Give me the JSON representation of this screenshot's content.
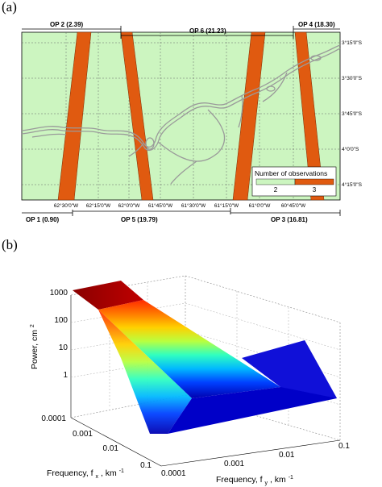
{
  "figure": {
    "panel_a": {
      "label": "(a)",
      "top_ops": [
        {
          "label": "OP 2 (2.39)"
        },
        {
          "label": "OP 6 (21.23)"
        },
        {
          "label": "OP 4 (18.30)"
        }
      ],
      "bottom_ops": [
        {
          "label": "OP 1 (0.90)"
        },
        {
          "label": "OP 5 (19.79)"
        },
        {
          "label": "OP 3 (16.81)"
        }
      ],
      "lat_ticks": [
        "3°15'0\"S",
        "3°30'0\"S",
        "3°45'0\"S",
        "4°0'0\"S",
        "4°15'0\"S"
      ],
      "lon_ticks": [
        "62°30'0\"W",
        "62°15'0\"W",
        "62°0'0\"W",
        "61°45'0\"W",
        "61°30'0\"W",
        "61°15'0\"W",
        "61°0'0\"W",
        "60°45'0\"W"
      ],
      "legend": {
        "title": "Number of observations",
        "items": [
          {
            "label": "2",
            "color": "#ccf5c0"
          },
          {
            "label": "3",
            "color": "#e05a10"
          }
        ]
      },
      "colors": {
        "background": "#ccf5c0",
        "swath": "#e05a10",
        "river": "#9a9a9a"
      }
    },
    "panel_b": {
      "label": "(b)",
      "chart_data": {
        "type": "surface",
        "zlabel": "Power, cm 2",
        "xlabel": "Frequency, f x, km-1",
        "ylabel": "Frequency, f y, km-1",
        "z_ticks": [
          "1000",
          "100",
          "10",
          "1"
        ],
        "x_ticks": [
          "0.0001",
          "0.001",
          "0.01",
          "0.1"
        ],
        "y_ticks": [
          "0.0001",
          "0.001",
          "0.01",
          "0.1"
        ],
        "colormap": "jet"
      },
      "axis_text": {
        "z_main": "Power, cm",
        "z_sup": "2",
        "x_main": "Frequency, f",
        "x_sub": "x",
        "x_tail": ", km",
        "x_sup": "-1",
        "y_main": "Frequency, f",
        "y_sub": "y",
        "y_tail": ", km",
        "y_sup": "-1"
      }
    }
  }
}
